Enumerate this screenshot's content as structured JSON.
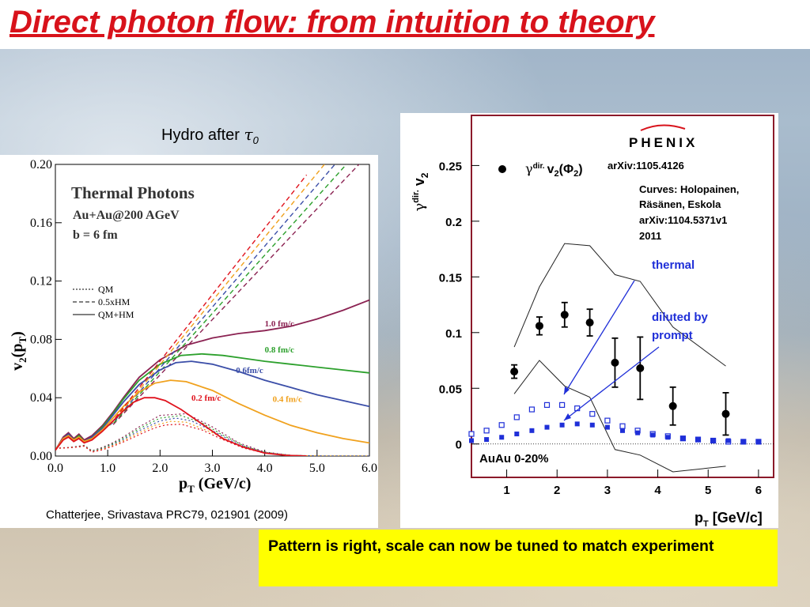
{
  "slide": {
    "title": "Direct photon flow: from intuition to theory",
    "hydro_label": "Hydro after",
    "hydro_tau": "τ",
    "hydro_tau_sub": "0",
    "citation_left": "Chatterjee, Srivastava  PRC79, 021901 (2009)",
    "conclusion": "Pattern is right, scale can now be tuned to match experiment"
  },
  "chart_data": [
    {
      "type": "line",
      "title": "Thermal Photons",
      "subtitle": [
        "Au+Au@200 AGeV",
        "b = 6 fm"
      ],
      "xlabel": "pT (GeV/c)",
      "ylabel": "v2(pT)",
      "xlim": [
        0,
        6
      ],
      "ylim": [
        0,
        0.2
      ],
      "x_ticks": [
        "0.0",
        "1.0",
        "2.0",
        "3.0",
        "4.0",
        "5.0",
        "6.0"
      ],
      "y_ticks": [
        "0.00",
        "0.04",
        "0.08",
        "0.12",
        "0.16",
        "0.20"
      ],
      "legend": {
        "placement": "middle-left",
        "entries": [
          {
            "label": "QM",
            "style": "dotted"
          },
          {
            "label": "0.5xHM",
            "style": "dashed"
          },
          {
            "label": "QM+HM",
            "style": "solid"
          }
        ]
      },
      "series": [
        {
          "name": "1.0 fm/c",
          "color": "#8b2252",
          "x": [
            0,
            0.15,
            0.25,
            0.35,
            0.45,
            0.55,
            0.7,
            0.9,
            1.1,
            1.3,
            1.6,
            2.0,
            2.5,
            3.0,
            3.5,
            4.0,
            4.5,
            5.0,
            5.5,
            6.0
          ],
          "y": [
            0.004,
            0.013,
            0.016,
            0.012,
            0.015,
            0.011,
            0.014,
            0.021,
            0.03,
            0.04,
            0.054,
            0.066,
            0.076,
            0.081,
            0.084,
            0.086,
            0.089,
            0.094,
            0.1,
            0.107
          ]
        },
        {
          "name": "0.8 fm/c",
          "color": "#2ca02c",
          "x": [
            0,
            0.15,
            0.25,
            0.35,
            0.45,
            0.55,
            0.7,
            0.9,
            1.1,
            1.3,
            1.6,
            2.0,
            2.4,
            2.8,
            3.2,
            3.6,
            4.0,
            4.5,
            5.0,
            5.5,
            6.0
          ],
          "y": [
            0.004,
            0.012,
            0.015,
            0.011,
            0.014,
            0.01,
            0.013,
            0.02,
            0.029,
            0.039,
            0.052,
            0.063,
            0.069,
            0.07,
            0.069,
            0.067,
            0.065,
            0.063,
            0.061,
            0.059,
            0.057
          ]
        },
        {
          "name": "0.6fm/c",
          "color": "#3b4ea8",
          "x": [
            0,
            0.15,
            0.25,
            0.35,
            0.45,
            0.55,
            0.7,
            0.9,
            1.1,
            1.3,
            1.6,
            2.0,
            2.3,
            2.6,
            3.0,
            3.5,
            4.0,
            4.5,
            5.0,
            5.5,
            6.0
          ],
          "y": [
            0.004,
            0.012,
            0.015,
            0.011,
            0.013,
            0.01,
            0.013,
            0.019,
            0.028,
            0.037,
            0.049,
            0.059,
            0.064,
            0.065,
            0.063,
            0.058,
            0.052,
            0.047,
            0.042,
            0.038,
            0.034
          ]
        },
        {
          "name": "0.4 fm/c",
          "color": "#f0a11d",
          "x": [
            0,
            0.15,
            0.25,
            0.35,
            0.45,
            0.55,
            0.7,
            0.9,
            1.1,
            1.3,
            1.6,
            1.9,
            2.2,
            2.5,
            3.0,
            3.5,
            4.0,
            4.5,
            5.0,
            5.5,
            6.0
          ],
          "y": [
            0.004,
            0.012,
            0.014,
            0.011,
            0.013,
            0.01,
            0.012,
            0.018,
            0.026,
            0.034,
            0.044,
            0.05,
            0.052,
            0.051,
            0.045,
            0.036,
            0.028,
            0.021,
            0.016,
            0.012,
            0.009
          ]
        },
        {
          "name": "0.2 fm/c",
          "color": "#e0141e",
          "x": [
            0,
            0.15,
            0.25,
            0.35,
            0.45,
            0.55,
            0.7,
            0.9,
            1.1,
            1.3,
            1.5,
            1.7,
            1.9,
            2.1,
            2.4,
            2.8,
            3.2,
            3.6,
            4.0,
            4.4,
            4.8
          ],
          "y": [
            0.004,
            0.011,
            0.013,
            0.01,
            0.012,
            0.009,
            0.011,
            0.017,
            0.024,
            0.031,
            0.037,
            0.04,
            0.04,
            0.038,
            0.032,
            0.022,
            0.012,
            0.006,
            0.002,
            0.0005,
            0.0
          ]
        }
      ]
    },
    {
      "type": "scatter",
      "xlabel": "pT [GeV/c]",
      "ylabel": "γdir. v2",
      "xlim": [
        0.3,
        6.3
      ],
      "ylim": [
        -0.03,
        0.295
      ],
      "x_ticks": [
        "1",
        "2",
        "3",
        "4",
        "5",
        "6"
      ],
      "y_ticks": [
        "0",
        "0.05",
        "0.1",
        "0.15",
        "0.2",
        "0.25"
      ],
      "logo": "PHENIX",
      "legend_entry": {
        "label_gamma": "γ",
        "label_dir": "dir.",
        "label_v2": "v",
        "label_v2_sub": "2",
        "label_phi": "(Φ",
        "label_phi_sub": "2",
        "label_close": ")",
        "reference": "arXiv:1105.4126"
      },
      "curves_note": [
        "Curves: Holopainen,",
        "Räsänen, Eskola",
        "arXiv:1104.5371v1",
        "2011"
      ],
      "annotations": [
        "thermal",
        "diluted by",
        "prompt"
      ],
      "system_label": "AuAu 0-20%",
      "data_points": {
        "x": [
          1.15,
          1.65,
          2.15,
          2.65,
          3.15,
          3.65,
          4.3,
          5.35
        ],
        "y": [
          0.065,
          0.106,
          0.116,
          0.109,
          0.073,
          0.068,
          0.034,
          0.027
        ],
        "yerr": [
          0.006,
          0.008,
          0.011,
          0.012,
          0.022,
          0.028,
          0.017,
          0.019
        ]
      },
      "band_upper": {
        "x": [
          1.15,
          1.65,
          2.15,
          2.65,
          3.15,
          3.65,
          4.3,
          5.35
        ],
        "y": [
          0.087,
          0.141,
          0.18,
          0.178,
          0.152,
          0.146,
          0.105,
          0.07
        ]
      },
      "band_lower": {
        "x": [
          1.15,
          1.65,
          2.15,
          2.65,
          3.15,
          3.65,
          4.3,
          5.35
        ],
        "y": [
          0.045,
          0.075,
          0.052,
          0.042,
          -0.005,
          -0.01,
          -0.025,
          -0.02
        ]
      },
      "series": [
        {
          "name": "thermal",
          "marker": "open-square",
          "color": "#1f2fd8",
          "x": [
            0.3,
            0.6,
            0.9,
            1.2,
            1.5,
            1.8,
            2.1,
            2.4,
            2.7,
            3.0,
            3.3,
            3.6,
            3.9,
            4.2,
            4.5,
            4.8,
            5.1,
            5.4,
            5.7,
            6.0
          ],
          "y": [
            0.009,
            0.012,
            0.017,
            0.024,
            0.031,
            0.035,
            0.035,
            0.032,
            0.027,
            0.021,
            0.016,
            0.012,
            0.009,
            0.007,
            0.005,
            0.004,
            0.003,
            0.002,
            0.002,
            0.002
          ]
        },
        {
          "name": "diluted by prompt",
          "marker": "filled-square",
          "color": "#1f2fd8",
          "x": [
            0.3,
            0.6,
            0.9,
            1.2,
            1.5,
            1.8,
            2.1,
            2.4,
            2.7,
            3.0,
            3.3,
            3.6,
            3.9,
            4.2,
            4.5,
            4.8,
            5.1,
            5.4,
            5.7,
            6.0
          ],
          "y": [
            0.003,
            0.004,
            0.006,
            0.009,
            0.012,
            0.015,
            0.017,
            0.018,
            0.017,
            0.015,
            0.012,
            0.01,
            0.008,
            0.006,
            0.005,
            0.004,
            0.003,
            0.003,
            0.002,
            0.002
          ]
        }
      ]
    }
  ]
}
